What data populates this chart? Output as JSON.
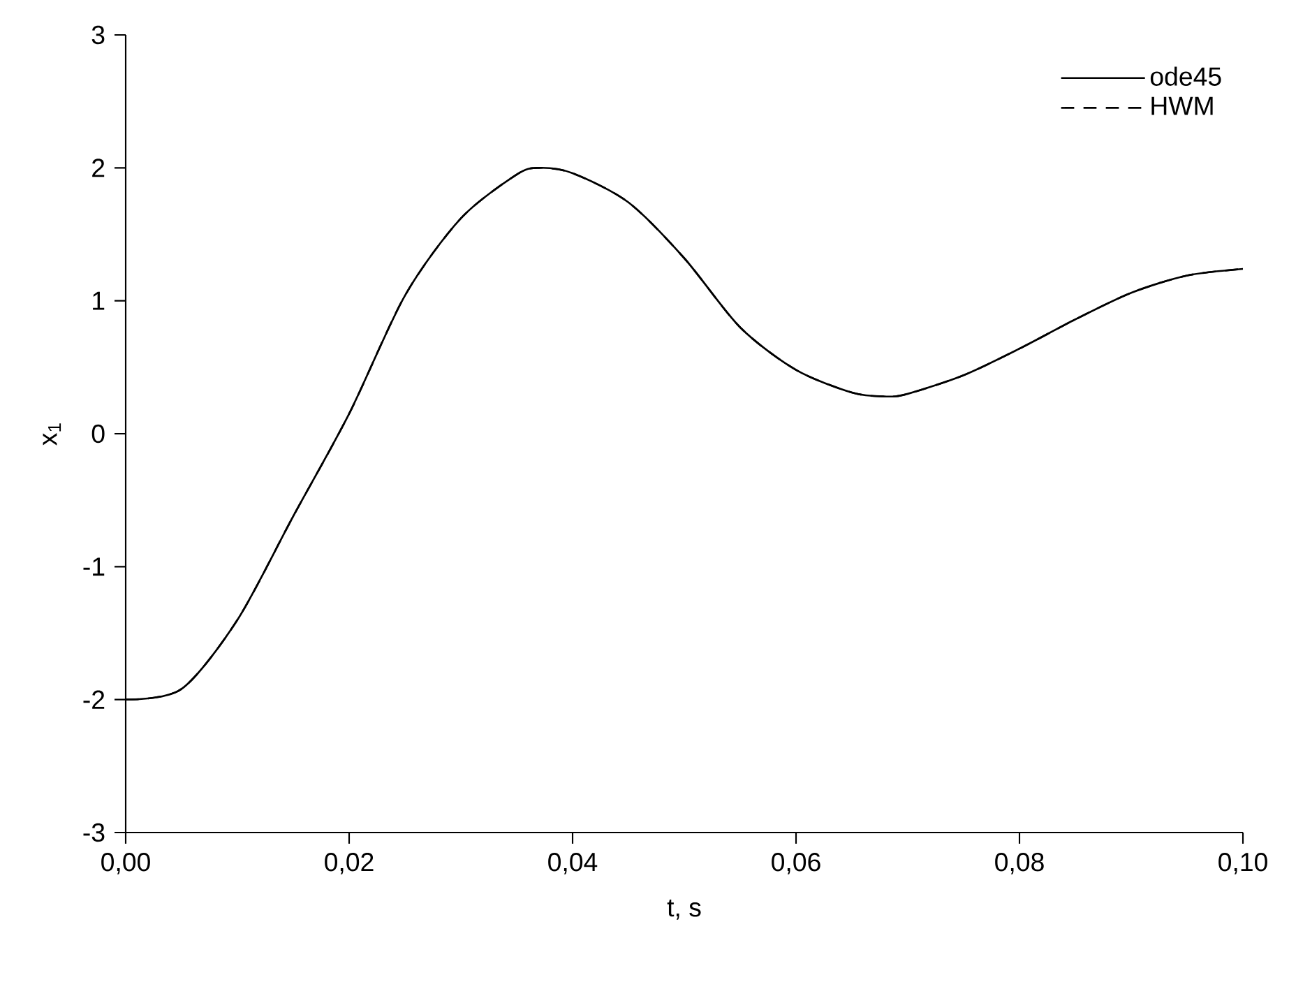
{
  "chart_data": {
    "type": "line",
    "xlabel": "t, s",
    "ylabel": "x$_{1}$",
    "x": [
      0,
      0.005,
      0.01,
      0.015,
      0.02,
      0.025,
      0.03,
      0.035,
      0.037,
      0.04,
      0.045,
      0.05,
      0.055,
      0.06,
      0.065,
      0.068,
      0.07,
      0.075,
      0.08,
      0.085,
      0.09,
      0.095,
      0.1
    ],
    "series": [
      {
        "name": "ode45",
        "color": "#000000",
        "line_style": "solid",
        "values": [
          -2.0,
          -1.92,
          -1.4,
          -0.62,
          0.15,
          1.04,
          1.62,
          1.95,
          2.0,
          1.96,
          1.74,
          1.32,
          0.8,
          0.48,
          0.31,
          0.28,
          0.3,
          0.44,
          0.64,
          0.86,
          1.06,
          1.19,
          1.24
        ]
      },
      {
        "name": "HWM",
        "color": "#000000",
        "line_style": "dashed",
        "values": [
          -2.0,
          -1.92,
          -1.4,
          -0.62,
          0.15,
          1.04,
          1.62,
          1.95,
          2.0,
          1.96,
          1.74,
          1.32,
          0.8,
          0.48,
          0.31,
          0.28,
          0.3,
          0.44,
          0.64,
          0.86,
          1.06,
          1.19,
          1.24
        ]
      }
    ],
    "xlim": [
      0,
      0.1
    ],
    "ylim": [
      -3,
      3
    ],
    "xticks": [
      {
        "value": 0,
        "label": "0,00"
      },
      {
        "value": 0.02,
        "label": "0,02"
      },
      {
        "value": 0.04,
        "label": "0,04"
      },
      {
        "value": 0.06,
        "label": "0,06"
      },
      {
        "value": 0.08,
        "label": "0,08"
      },
      {
        "value": 0.1,
        "label": "0,10"
      }
    ],
    "yticks": [
      -3,
      -2,
      -1,
      0,
      1,
      2,
      3
    ],
    "legend": "top right",
    "grid": false,
    "marker": "none"
  }
}
